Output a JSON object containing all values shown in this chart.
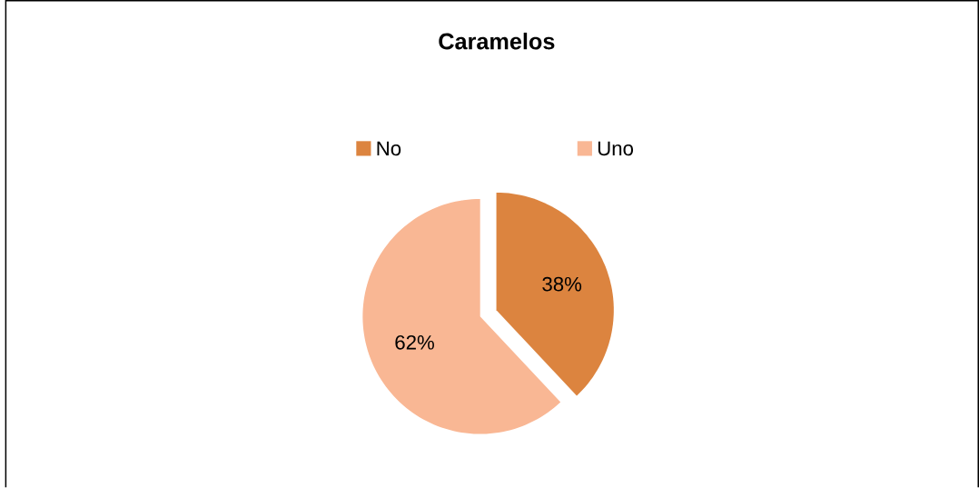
{
  "chart_data": {
    "type": "pie",
    "title": "Caramelos",
    "categories": [
      "No",
      "Uno"
    ],
    "values": [
      38,
      62
    ],
    "colors": [
      "#dc843f",
      "#f9b794"
    ],
    "value_labels": [
      "38%",
      "62%"
    ],
    "legend": "top"
  }
}
